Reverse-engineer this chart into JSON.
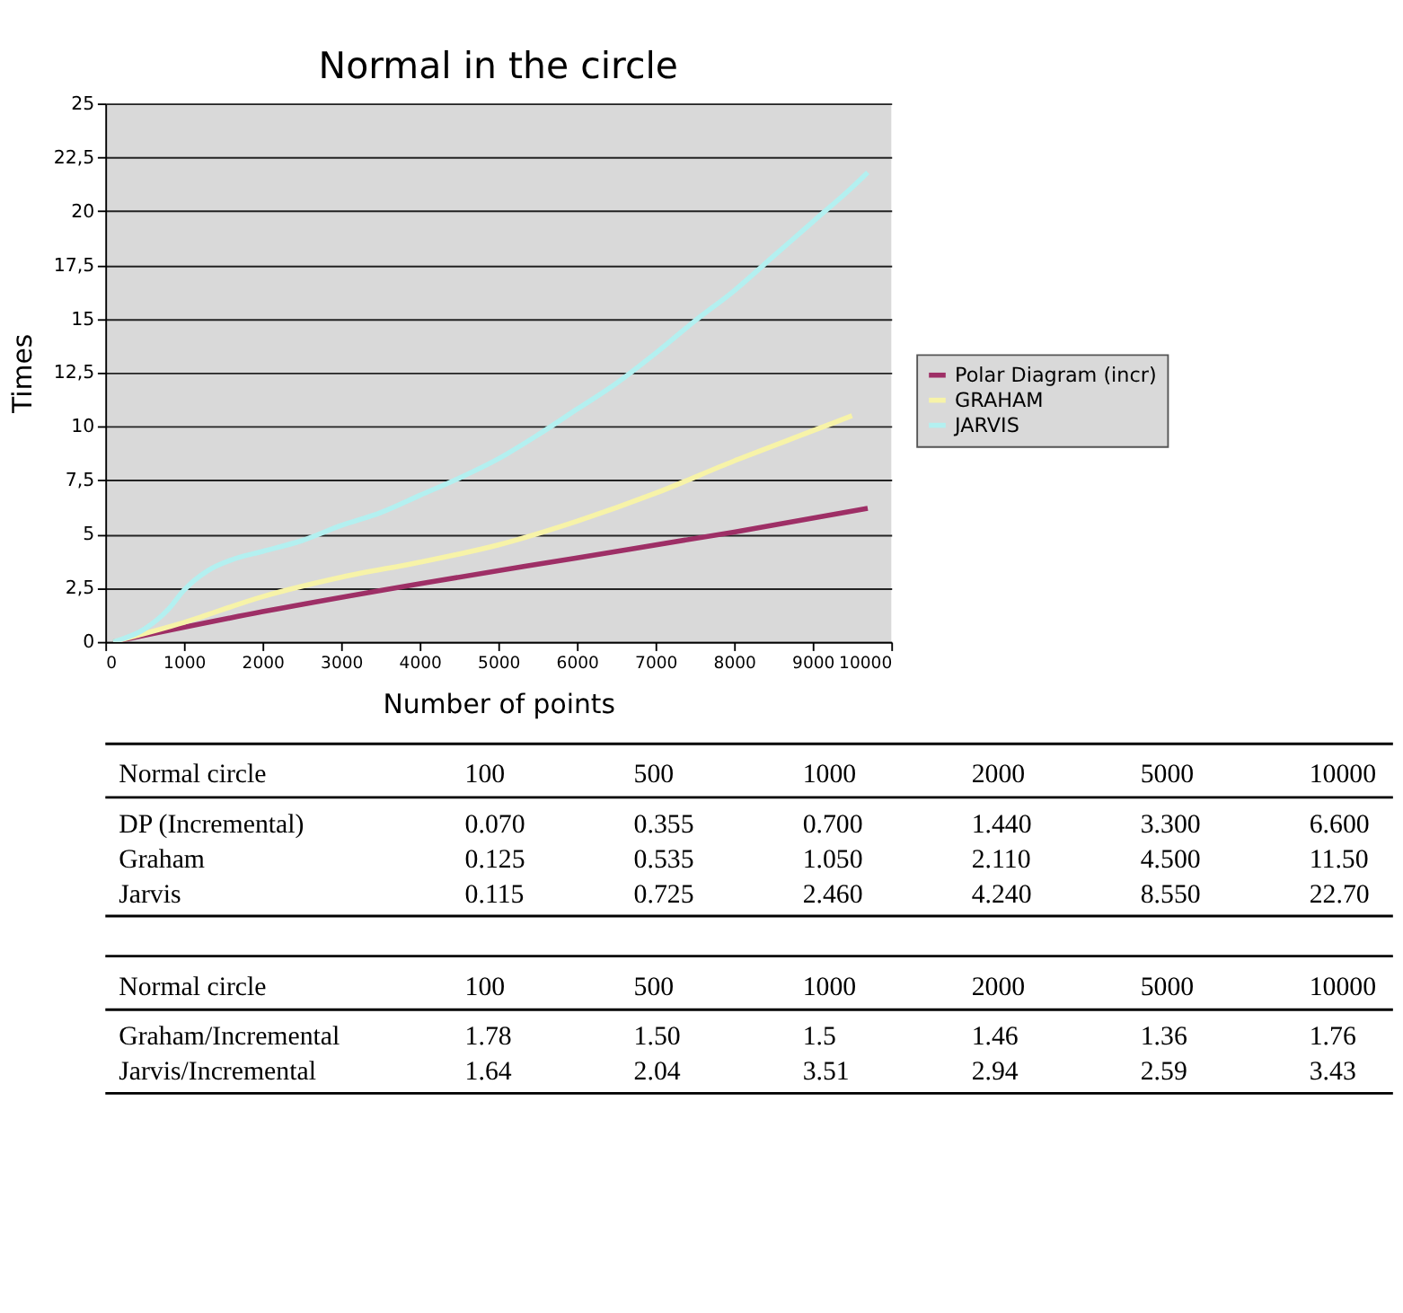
{
  "chart_data": [
    {
      "type": "line",
      "title": "Normal in the circle",
      "xlabel": "Number of points",
      "ylabel": "Times",
      "xlim": [
        0,
        10000
      ],
      "xticks": [
        0,
        1000,
        2000,
        3000,
        4000,
        5000,
        6000,
        7000,
        8000,
        9000,
        10000
      ],
      "ylim": [
        0,
        25
      ],
      "yticks": [
        0,
        {
          "value": 2.5,
          "label": "2,5"
        },
        5,
        {
          "value": 7.5,
          "label": "7,5"
        },
        10,
        {
          "value": 12.5,
          "label": "12,5"
        },
        15,
        {
          "value": 17.5,
          "label": "17,5"
        },
        20,
        {
          "value": 22.5,
          "label": "22,5"
        },
        25
      ],
      "grid": "y",
      "legend": "right",
      "line_style": "solid",
      "marker": "none",
      "series": [
        {
          "name": "Polar Diagram (incr)",
          "color": "#9e2f66",
          "x": [
            100,
            2000,
            4000,
            6000,
            8000,
            9700
          ],
          "values": [
            0,
            1.4,
            2.7,
            3.9,
            5.1,
            6.2
          ]
        },
        {
          "name": "GRAHAM",
          "color": "#f7f3a8",
          "x": [
            100,
            1000,
            2000,
            3000,
            4000,
            5000,
            6000,
            7000,
            8000,
            9000,
            9500
          ],
          "values": [
            0,
            0.9,
            2.1,
            3.0,
            3.7,
            4.5,
            5.6,
            6.9,
            8.4,
            9.8,
            10.5
          ]
        },
        {
          "name": "JARVIS",
          "color": "#b3f0f0",
          "x": [
            100,
            500,
            800,
            1000,
            1300,
            1600,
            2000,
            2500,
            3000,
            3500,
            4000,
            4500,
            5000,
            5500,
            6000,
            6500,
            7000,
            7500,
            8000,
            8500,
            9000,
            9500,
            9700
          ],
          "values": [
            0,
            0.6,
            1.5,
            2.4,
            3.3,
            3.8,
            4.2,
            4.7,
            5.4,
            6.0,
            6.8,
            7.6,
            8.5,
            9.6,
            10.8,
            12.0,
            13.4,
            14.9,
            16.3,
            17.9,
            19.5,
            21.1,
            21.8
          ]
        }
      ]
    },
    {
      "type": "other",
      "xlabel": "Normal circle",
      "categories": [
        "100",
        "500",
        "1000",
        "2000",
        "5000",
        "10000"
      ],
      "series": [
        {
          "name": "DP (Incremental)",
          "values": [
            0.07,
            0.355,
            0.7,
            1.44,
            3.3,
            6.6
          ],
          "value_labels": [
            "0.070",
            "0.355",
            "0.700",
            "1.440",
            "3.300",
            "6.600"
          ]
        },
        {
          "name": "Graham",
          "values": [
            0.125,
            0.535,
            1.05,
            2.11,
            4.5,
            11.5
          ],
          "value_labels": [
            "0.125",
            "0.535",
            "1.050",
            "2.110",
            "4.500",
            "11.50"
          ]
        },
        {
          "name": "Jarvis",
          "values": [
            0.115,
            0.725,
            2.46,
            4.24,
            8.55,
            22.7
          ],
          "value_labels": [
            "0.115",
            "0.725",
            "2.460",
            "4.240",
            "8.550",
            "22.70"
          ]
        }
      ]
    },
    {
      "type": "other",
      "xlabel": "Normal circle",
      "categories": [
        "100",
        "500",
        "1000",
        "2000",
        "5000",
        "10000"
      ],
      "series": [
        {
          "name": "Graham/Incremental",
          "values": [
            1.78,
            1.5,
            1.5,
            1.46,
            1.36,
            1.76
          ],
          "value_labels": [
            "1.78",
            "1.50",
            "1.5",
            "1.46",
            "1.36",
            "1.76"
          ]
        },
        {
          "name": "Jarvis/Incremental",
          "values": [
            1.64,
            2.04,
            3.51,
            2.94,
            2.59,
            3.43
          ],
          "value_labels": [
            "1.64",
            "2.04",
            "3.51",
            "2.94",
            "2.59",
            "3.43"
          ]
        }
      ]
    }
  ]
}
